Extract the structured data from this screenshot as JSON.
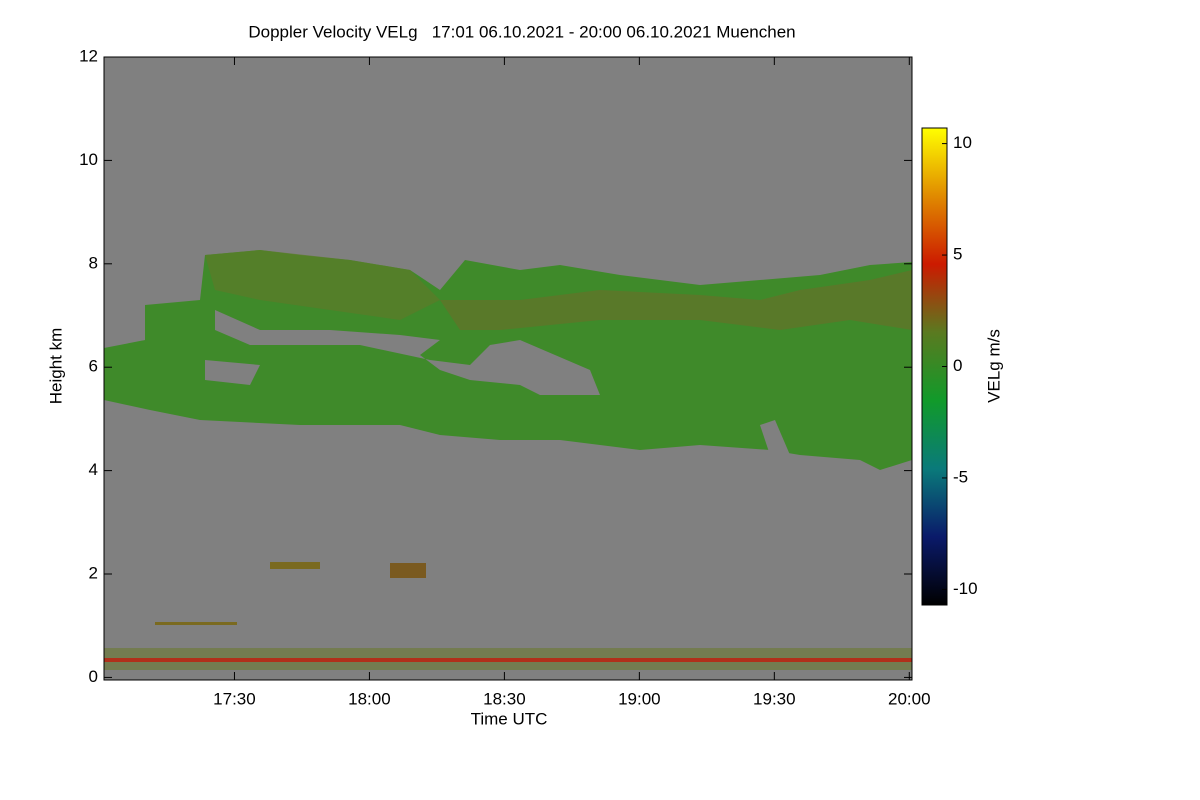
{
  "chart_data": {
    "type": "heatmap",
    "title": "Doppler Velocity VELg   17:01 06.10.2021 - 20:00 06.10.2021 Muenchen",
    "x_label": "Time UTC",
    "y_label": "Height km",
    "xlim": [
      17.0167,
      20.01
    ],
    "xticks": [
      {
        "value": 17.5,
        "label": "17:30"
      },
      {
        "value": 18.0,
        "label": "18:00"
      },
      {
        "value": 18.5,
        "label": "18:30"
      },
      {
        "value": 19.0,
        "label": "19:00"
      },
      {
        "value": 19.5,
        "label": "19:30"
      },
      {
        "value": 20.0,
        "label": "20:00"
      }
    ],
    "ylim": [
      -0.05,
      12
    ],
    "yticks": [
      0,
      2,
      4,
      6,
      8,
      10,
      12
    ],
    "colorbar_label": "VELg m/s",
    "zlim": [
      -10.7,
      10.7
    ],
    "zticks": [
      -10,
      -5,
      0,
      5,
      10
    ],
    "colormap": [
      "#000000",
      "#0a1a6a",
      "#0a7a7a",
      "#119a2a",
      "#5a7a20",
      "#cc1a00",
      "#e08a00",
      "#ffff00"
    ],
    "background": "#808080"
  }
}
